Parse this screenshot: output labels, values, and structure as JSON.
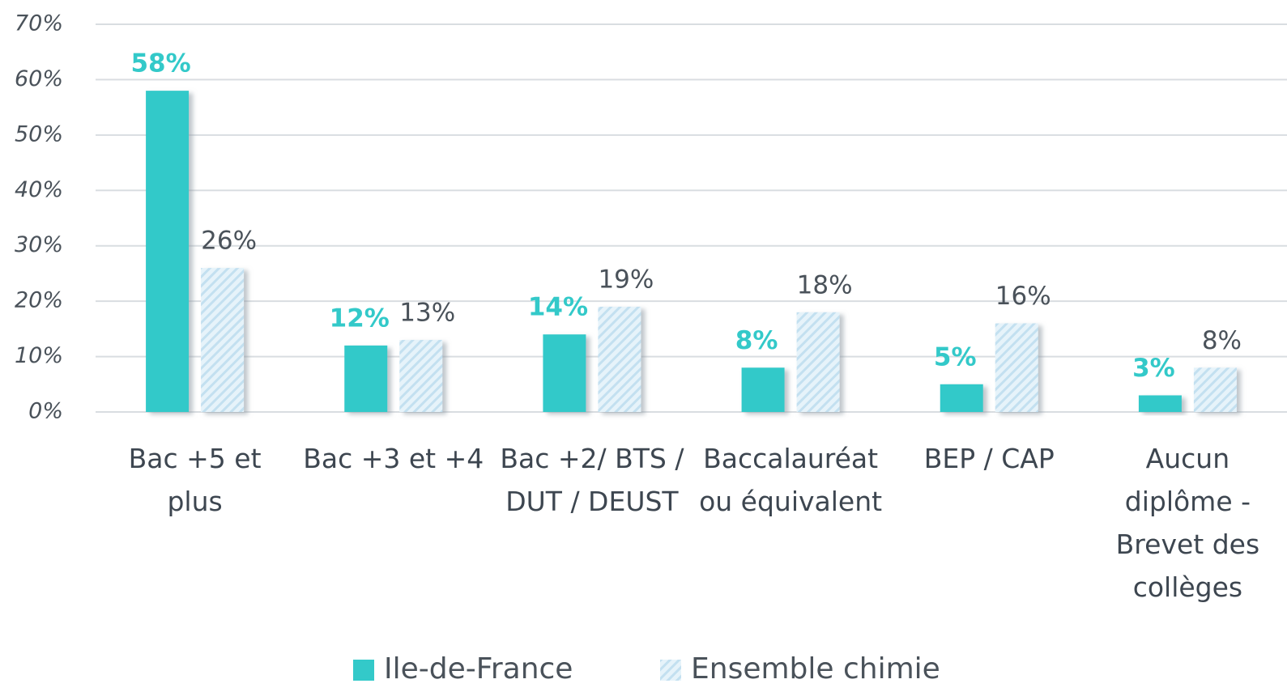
{
  "chart_data": {
    "type": "bar",
    "categories": [
      "Bac +5 et plus",
      "Bac +3 et +4",
      "Bac +2/ BTS / DUT / DEUST",
      "Baccalauréat ou équivalent",
      "BEP / CAP",
      "Aucun diplôme - Brevet des collèges"
    ],
    "series": [
      {
        "name": "Ile-de-France",
        "color": "#33c9c9",
        "values": [
          58,
          12,
          14,
          8,
          5,
          3
        ],
        "value_labels": [
          "58%",
          "12%",
          "14%",
          "8%",
          "5%",
          "3%"
        ]
      },
      {
        "name": "Ensemble chimie",
        "color": "#d3eaf6",
        "values": [
          26,
          13,
          19,
          18,
          16,
          8
        ],
        "value_labels": [
          "26%",
          "13%",
          "19%",
          "18%",
          "16%",
          "8%"
        ]
      }
    ],
    "ylim": [
      0,
      70
    ],
    "yticks": [
      {
        "value": 0,
        "label": "0%"
      },
      {
        "value": 10,
        "label": "10%"
      },
      {
        "value": 20,
        "label": "20%"
      },
      {
        "value": 30,
        "label": "30%"
      },
      {
        "value": 40,
        "label": "40%"
      },
      {
        "value": 50,
        "label": "50%"
      },
      {
        "value": 60,
        "label": "60%"
      },
      {
        "value": 70,
        "label": "70%"
      }
    ],
    "grid": true,
    "legend": "bottom"
  }
}
